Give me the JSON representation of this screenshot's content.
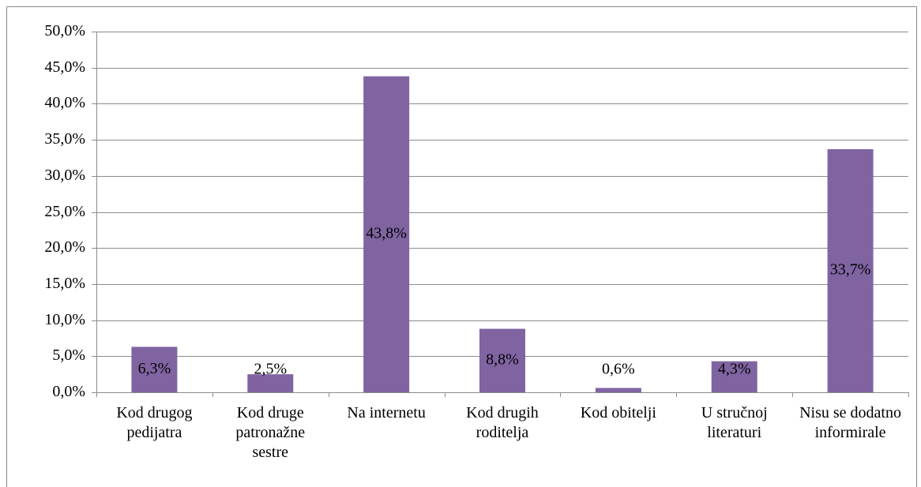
{
  "chart_data": {
    "type": "bar",
    "categories": [
      "Kod drugog pedijatra",
      "Kod druge patronažne sestre",
      "Na internetu",
      "Kod drugih roditelja",
      "Kod obitelji",
      "U stručnoj literaturi",
      "Nisu se dodatno informirale"
    ],
    "values": [
      6.3,
      2.5,
      43.8,
      8.8,
      0.6,
      4.3,
      33.7
    ],
    "value_labels": [
      "6,3%",
      "2,5%",
      "43,8%",
      "8,8%",
      "0,6%",
      "4,3%",
      "33,7%"
    ],
    "color": "#8064a2",
    "ylim": [
      0,
      50
    ],
    "yticks": [
      {
        "value": 0,
        "label": "0,0%"
      },
      {
        "value": 5,
        "label": "5,0%"
      },
      {
        "value": 10,
        "label": "10,0%"
      },
      {
        "value": 15,
        "label": "15,0%"
      },
      {
        "value": 20,
        "label": "20,0%"
      },
      {
        "value": 25,
        "label": "25,0%"
      },
      {
        "value": 30,
        "label": "30,0%"
      },
      {
        "value": 35,
        "label": "35,0%"
      },
      {
        "value": 40,
        "label": "40,0%"
      },
      {
        "value": 45,
        "label": "45,0%"
      },
      {
        "value": 50,
        "label": "50,0%"
      }
    ],
    "grid": true
  }
}
